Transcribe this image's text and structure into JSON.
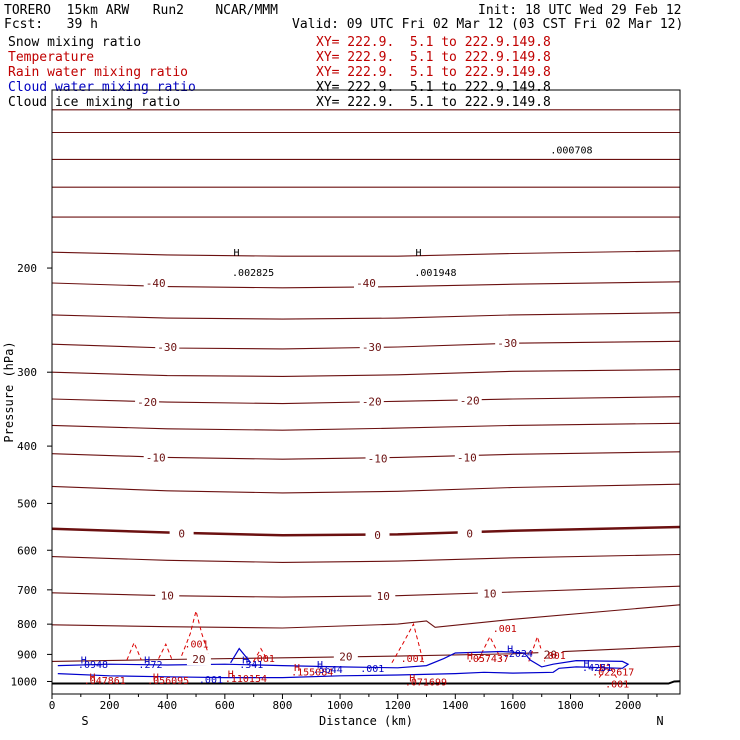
{
  "header": {
    "model": "TORERO  15km ARW   Run2    NCAR/MMM",
    "init": "Init: 18 UTC Wed 29 Feb 12",
    "fcst": "Fcst:   39 h",
    "valid": "Valid: 09 UTC Fri 02 Mar 12 (03 CST Fri 02 Mar 12)"
  },
  "legend": [
    {
      "label": "Snow mixing ratio",
      "color": "#000000",
      "xy": "XY= 222.9.  5.1 to 222.9.149.8",
      "xy_color": "#c00000"
    },
    {
      "label": "Temperature",
      "color": "#c00000",
      "xy": "XY= 222.9.  5.1 to 222.9.149.8",
      "xy_color": "#c00000"
    },
    {
      "label": "Rain water mixing ratio",
      "color": "#c00000",
      "xy": "XY= 222.9.  5.1 to 222.9.149.8",
      "xy_color": "#c00000"
    },
    {
      "label": "Cloud water mixing ratio",
      "color": "#0000c0",
      "xy": "XY= 222.9.  5.1 to 222.9.149.8",
      "xy_color": "#000000"
    },
    {
      "label": "Cloud ice mixing ratio",
      "color": "#000000",
      "xy": "XY= 222.9.  5.1 to 222.9.149.8",
      "xy_color": "#000000"
    }
  ],
  "chart_data": {
    "type": "line",
    "xlabel": "Distance (km)",
    "ylabel": "Pressure (hPa)",
    "xlim": [
      0,
      2180
    ],
    "ylim": [
      1050,
      100
    ],
    "y_scale": "log",
    "x_ticks": [
      0,
      200,
      400,
      600,
      800,
      1000,
      1200,
      1400,
      1600,
      1800,
      2000
    ],
    "y_ticks": [
      200,
      300,
      400,
      500,
      600,
      700,
      800,
      900,
      1000
    ],
    "end_labels": {
      "left": "S",
      "right": "N"
    },
    "temperature_contours": [
      {
        "level": -70,
        "x": [
          0,
          2180
        ],
        "p": [
          108,
          108
        ]
      },
      {
        "level": -65,
        "x": [
          0,
          2180
        ],
        "p": [
          118,
          118
        ]
      },
      {
        "level": -60,
        "x": [
          0,
          2180
        ],
        "p": [
          131,
          131
        ]
      },
      {
        "level": -55,
        "x": [
          0,
          2180
        ],
        "p": [
          146,
          146
        ]
      },
      {
        "level": -50,
        "x": [
          0,
          2180
        ],
        "p": [
          164,
          164
        ]
      },
      {
        "level": -45,
        "x": [
          0,
          400,
          800,
          1200,
          1600,
          2180
        ],
        "p": [
          188,
          190,
          191,
          191,
          189,
          187
        ]
      },
      {
        "level": -40,
        "x": [
          0,
          400,
          800,
          1200,
          1600,
          2180
        ],
        "p": [
          212,
          215,
          216,
          215,
          213,
          211
        ]
      },
      {
        "level": -35,
        "x": [
          0,
          400,
          800,
          1200,
          1600,
          2180
        ],
        "p": [
          240,
          243,
          244,
          243,
          240,
          238
        ]
      },
      {
        "level": -30,
        "x": [
          0,
          400,
          800,
          1200,
          1600,
          2180
        ],
        "p": [
          269,
          273,
          274,
          272,
          268,
          266
        ]
      },
      {
        "level": -25,
        "x": [
          0,
          400,
          800,
          1200,
          1600,
          2180
        ],
        "p": [
          300,
          304,
          305,
          303,
          299,
          297
        ]
      },
      {
        "level": -20,
        "x": [
          0,
          400,
          800,
          1200,
          1600,
          2180
        ],
        "p": [
          333,
          337,
          339,
          336,
          333,
          330
        ]
      },
      {
        "level": -15,
        "x": [
          0,
          400,
          800,
          1200,
          1600,
          2180
        ],
        "p": [
          369,
          374,
          376,
          373,
          369,
          366
        ]
      },
      {
        "level": -10,
        "x": [
          0,
          400,
          800,
          1200,
          1600,
          2180
        ],
        "p": [
          412,
          418,
          421,
          418,
          413,
          409
        ]
      },
      {
        "level": -5,
        "x": [
          0,
          400,
          800,
          1200,
          1600,
          2180
        ],
        "p": [
          468,
          476,
          480,
          477,
          470,
          464
        ]
      },
      {
        "level": 0,
        "x": [
          0,
          400,
          800,
          1200,
          1600,
          2180
        ],
        "p": [
          552,
          560,
          566,
          564,
          556,
          548
        ]
      },
      {
        "level": 5,
        "x": [
          0,
          400,
          800,
          1200,
          1600,
          2180
        ],
        "p": [
          615,
          624,
          629,
          626,
          618,
          610
        ]
      },
      {
        "level": 10,
        "x": [
          0,
          400,
          800,
          1200,
          1600,
          2180
        ],
        "p": [
          708,
          716,
          720,
          716,
          706,
          690
        ]
      },
      {
        "level": 15,
        "x": [
          0,
          400,
          800,
          1200,
          1300,
          1330,
          1600,
          2180
        ],
        "p": [
          802,
          808,
          812,
          800,
          790,
          810,
          785,
          742
        ]
      },
      {
        "level": 20,
        "x": [
          0,
          400,
          800,
          1200,
          1600,
          2180
        ],
        "p": [
          925,
          918,
          912,
          906,
          898,
          872
        ]
      }
    ],
    "temperature_labels": [
      {
        "text": "-40",
        "x": 360,
        "p": 212
      },
      {
        "text": "-40",
        "x": 1090,
        "p": 212
      },
      {
        "text": "-30",
        "x": 400,
        "p": 272
      },
      {
        "text": "-30",
        "x": 1110,
        "p": 272
      },
      {
        "text": "-30",
        "x": 1580,
        "p": 268
      },
      {
        "text": "-20",
        "x": 330,
        "p": 337
      },
      {
        "text": "-20",
        "x": 1110,
        "p": 336
      },
      {
        "text": "-20",
        "x": 1450,
        "p": 335
      },
      {
        "text": "-10",
        "x": 360,
        "p": 418
      },
      {
        "text": "-10",
        "x": 1130,
        "p": 420
      },
      {
        "text": "-10",
        "x": 1440,
        "p": 418
      },
      {
        "text": "0",
        "x": 450,
        "p": 562
      },
      {
        "text": "0",
        "x": 1130,
        "p": 565
      },
      {
        "text": "0",
        "x": 1450,
        "p": 562
      },
      {
        "text": "10",
        "x": 400,
        "p": 716
      },
      {
        "text": "10",
        "x": 1150,
        "p": 717
      },
      {
        "text": "10",
        "x": 1520,
        "p": 710
      },
      {
        "text": "20",
        "x": 510,
        "p": 917
      },
      {
        "text": "20",
        "x": 1020,
        "p": 908
      },
      {
        "text": "20",
        "x": 1730,
        "p": 900
      }
    ],
    "rain_contours": [
      {
        "x": [
          450,
          480,
          500,
          520,
          545
        ],
        "p": [
          905,
          830,
          760,
          830,
          905
        ]
      },
      {
        "x": [
          260,
          285,
          310
        ],
        "p": [
          920,
          860,
          920
        ]
      },
      {
        "x": [
          370,
          395,
          415
        ],
        "p": [
          915,
          865,
          915
        ]
      },
      {
        "x": [
          700,
          725,
          750
        ],
        "p": [
          925,
          880,
          925
        ]
      },
      {
        "x": [
          1180,
          1220,
          1255,
          1290
        ],
        "p": [
          930,
          860,
          800,
          930
        ]
      },
      {
        "x": [
          1480,
          1520,
          1560
        ],
        "p": [
          920,
          840,
          920
        ]
      },
      {
        "x": [
          1655,
          1685,
          1710
        ],
        "p": [
          925,
          840,
          925
        ]
      },
      {
        "x": [
          1900,
          1930,
          1960
        ],
        "p": [
          985,
          935,
          985
        ]
      }
    ],
    "cloud_water_contours": [
      {
        "x": [
          20,
          200,
          400,
          600,
          800,
          1000,
          1200,
          1300,
          1360,
          1400,
          1560,
          1640,
          1660,
          1700,
          1740,
          1820,
          1980,
          2000,
          1980,
          1820,
          1760,
          1740,
          1600,
          1500,
          1400,
          1200,
          1000,
          800,
          600,
          400,
          200,
          20
        ],
        "p": [
          940,
          935,
          938,
          935,
          940,
          945,
          948,
          940,
          915,
          895,
          890,
          895,
          920,
          945,
          935,
          922,
          925,
          935,
          950,
          945,
          950,
          965,
          968,
          965,
          970,
          975,
          978,
          985,
          985,
          982,
          978,
          970
        ]
      },
      {
        "x": [
          620,
          650,
          690
        ],
        "p": [
          930,
          880,
          930
        ]
      }
    ],
    "annotations": [
      {
        "text": "H",
        "x": 630,
        "p": 188,
        "color": "#000000"
      },
      {
        "text": ".002825",
        "x": 625,
        "p": 203,
        "color": "#000000"
      },
      {
        "text": "H",
        "x": 1262,
        "p": 188,
        "color": "#000000"
      },
      {
        "text": ".001948",
        "x": 1258,
        "p": 203,
        "color": "#000000"
      },
      {
        "text": ".000708",
        "x": 1730,
        "p": 126,
        "color": "#000000"
      },
      {
        "text": ".001",
        "x": 460,
        "p": 862,
        "color": "#c00000"
      },
      {
        "text": ".001",
        "x": 1530,
        "p": 812,
        "color": "#c00000"
      },
      {
        "text": ".001",
        "x": 690,
        "p": 912,
        "color": "#c00000"
      },
      {
        "text": ".001",
        "x": 1210,
        "p": 912,
        "color": "#c00000"
      },
      {
        "text": ".001",
        "x": 1700,
        "p": 902,
        "color": "#c00000"
      },
      {
        "text": ".001",
        "x": 1920,
        "p": 1008,
        "color": "#c00000"
      },
      {
        "text": "H",
        "x": 130,
        "p": 980,
        "color": "#c00000"
      },
      {
        "text": ".047861",
        "x": 110,
        "p": 995,
        "color": "#c00000"
      },
      {
        "text": "H",
        "x": 350,
        "p": 980,
        "color": "#c00000"
      },
      {
        "text": ".056095",
        "x": 330,
        "p": 995,
        "color": "#c00000"
      },
      {
        "text": "H",
        "x": 610,
        "p": 970,
        "color": "#c00000"
      },
      {
        "text": ".110154",
        "x": 600,
        "p": 987,
        "color": "#c00000"
      },
      {
        "text": "H",
        "x": 840,
        "p": 945,
        "color": "#c00000"
      },
      {
        "text": ".155084",
        "x": 830,
        "p": 962,
        "color": "#c00000"
      },
      {
        "text": "H",
        "x": 1240,
        "p": 985,
        "color": "#c00000"
      },
      {
        "text": ".071699",
        "x": 1225,
        "p": 1000,
        "color": "#c00000"
      },
      {
        "text": ".057437",
        "x": 1440,
        "p": 913,
        "color": "#c00000"
      },
      {
        "text": "H",
        "x": 1440,
        "p": 903,
        "color": "#c00000"
      },
      {
        "text": "H",
        "x": 1900,
        "p": 945,
        "color": "#c00000"
      },
      {
        "text": ".022617",
        "x": 1875,
        "p": 962,
        "color": "#c00000"
      },
      {
        "text": "H",
        "x": 100,
        "p": 918,
        "color": "#0000c0"
      },
      {
        "text": ".0948",
        "x": 90,
        "p": 935,
        "color": "#0000c0"
      },
      {
        "text": "H",
        "x": 320,
        "p": 918,
        "color": "#0000c0"
      },
      {
        "text": ".272",
        "x": 300,
        "p": 935,
        "color": "#0000c0"
      },
      {
        "text": "H",
        "x": 660,
        "p": 918,
        "color": "#0000c0"
      },
      {
        "text": ".341",
        "x": 650,
        "p": 935,
        "color": "#0000c0"
      },
      {
        "text": "H",
        "x": 920,
        "p": 935,
        "color": "#0000c0"
      },
      {
        "text": ".5644",
        "x": 905,
        "p": 952,
        "color": "#0000c0"
      },
      {
        "text": ".001",
        "x": 1070,
        "p": 948,
        "color": "#0000c0"
      },
      {
        "text": ".001",
        "x": 510,
        "p": 990,
        "color": "#0000c0"
      },
      {
        "text": "H",
        "x": 1580,
        "p": 880,
        "color": "#0000c0"
      },
      {
        "text": ".2024",
        "x": 1565,
        "p": 895,
        "color": "#0000c0"
      },
      {
        "text": "H",
        "x": 1845,
        "p": 930,
        "color": "#0000c0"
      },
      {
        "text": ".4251",
        "x": 1840,
        "p": 945,
        "color": "#0000c0"
      }
    ]
  }
}
